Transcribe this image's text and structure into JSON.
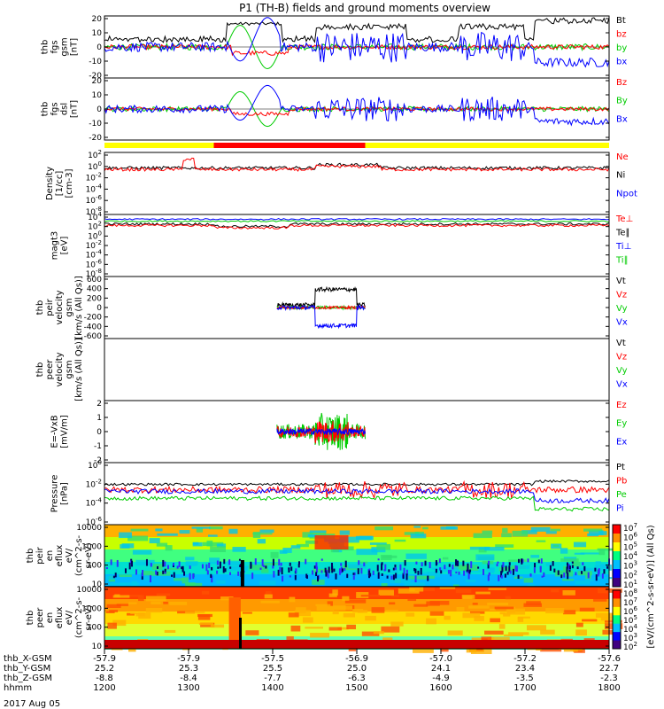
{
  "title": "P1 (TH-B) fields and ground moments overview",
  "colors": {
    "black": "#000000",
    "red": "#ff0000",
    "green": "#00cc00",
    "blue": "#0000ff",
    "yellow": "#ffff00"
  },
  "xaxis": {
    "rows": [
      {
        "label": "thb_X-GSM",
        "values": [
          "-57.9",
          "-57.9",
          "-57.5",
          "-56.9",
          "-57.0",
          "-57.2",
          "-57.6"
        ]
      },
      {
        "label": "thb_Y-GSM",
        "values": [
          "25.2",
          "25.3",
          "25.5",
          "25.0",
          "24.1",
          "23.4",
          "22.7"
        ]
      },
      {
        "label": "thb_Z-GSM",
        "values": [
          "-8.8",
          "-8.4",
          "-7.7",
          "-6.3",
          "-4.9",
          "-3.5",
          "-2.3"
        ]
      },
      {
        "label": "hhmm",
        "values": [
          "1200",
          "1300",
          "1400",
          "1500",
          "1600",
          "1700",
          "1800"
        ]
      }
    ],
    "date": "2017 Aug 05"
  },
  "status_bar": {
    "segments": [
      {
        "from": 1200,
        "to": 1330,
        "color": "yellow"
      },
      {
        "from": 1330,
        "to": 1510,
        "color": "red"
      },
      {
        "from": 1510,
        "to": 1800,
        "color": "yellow"
      }
    ]
  },
  "chart_data": [
    {
      "id": "fgs_gsm",
      "type": "line",
      "ylabel": [
        "thb",
        "fgs",
        "gsm",
        "[nT]"
      ],
      "yticks": [
        "20",
        "10",
        "0",
        "-10",
        "-20"
      ],
      "ylim": [
        -20,
        20
      ],
      "legend": [
        {
          "name": "Bt",
          "color": "black"
        },
        {
          "name": "bz",
          "color": "red"
        },
        {
          "name": "by",
          "color": "green"
        },
        {
          "name": "bx",
          "color": "blue"
        }
      ]
    },
    {
      "id": "fgs_dsl",
      "type": "line",
      "ylabel": [
        "thb",
        "fgs",
        "dsl",
        "[nT]"
      ],
      "yticks": [
        "20",
        "10",
        "0",
        "-10",
        "-20"
      ],
      "ylim": [
        -25,
        25
      ],
      "legend": [
        {
          "name": "Bz",
          "color": "red"
        },
        {
          "name": "By",
          "color": "green"
        },
        {
          "name": "Bx",
          "color": "blue"
        }
      ]
    },
    {
      "id": "density",
      "type": "line",
      "scale": "log",
      "ylabel": [
        "Density",
        "[1/cc]",
        "[cm-3]"
      ],
      "yticks": [
        "10^2",
        "10^0",
        "10^-2",
        "10^-4",
        "10^-6",
        "10^-8"
      ],
      "legend": [
        {
          "name": "Ne",
          "color": "red"
        },
        {
          "name": "Ni",
          "color": "black"
        },
        {
          "name": "Npot",
          "color": "blue"
        }
      ]
    },
    {
      "id": "temperature",
      "type": "line",
      "scale": "log",
      "ylabel": [
        "magt3",
        "[eV]"
      ],
      "yticks": [
        "10^4",
        "10^2",
        "10^0",
        "10^-2",
        "10^-4",
        "10^-6",
        "10^-8"
      ],
      "legend": [
        {
          "name": "Te⊥",
          "color": "red"
        },
        {
          "name": "Te∥",
          "color": "black"
        },
        {
          "name": "Ti⊥",
          "color": "blue"
        },
        {
          "name": "Ti∥",
          "color": "green"
        }
      ]
    },
    {
      "id": "peir_velocity",
      "type": "line",
      "ylabel": [
        "thb",
        "peir",
        "velocity",
        "gsm",
        "[km/s (All Qs)]"
      ],
      "yticks": [
        "600",
        "400",
        "200",
        "0",
        "-200",
        "-400",
        "-600"
      ],
      "ylim": [
        -600,
        600
      ],
      "legend": [
        {
          "name": "Vt",
          "color": "black"
        },
        {
          "name": "Vz",
          "color": "red"
        },
        {
          "name": "Vy",
          "color": "green"
        },
        {
          "name": "Vx",
          "color": "blue"
        }
      ]
    },
    {
      "id": "peer_velocity",
      "type": "line",
      "ylabel": [
        "thb",
        "peer",
        "velocity",
        "gsm",
        "[km/s (All Qs)]"
      ],
      "yticks": [],
      "legend": [
        {
          "name": "Vt",
          "color": "black"
        },
        {
          "name": "Vz",
          "color": "red"
        },
        {
          "name": "Vy",
          "color": "green"
        },
        {
          "name": "Vx",
          "color": "blue"
        }
      ]
    },
    {
      "id": "efield",
      "type": "line",
      "ylabel": [
        "E=-VxB",
        "[mV/m]"
      ],
      "yticks": [
        "2",
        "1",
        "0",
        "-1",
        "-2"
      ],
      "ylim": [
        -2.5,
        2.5
      ],
      "legend": [
        {
          "name": "Ez",
          "color": "red"
        },
        {
          "name": "Ey",
          "color": "green"
        },
        {
          "name": "Ex",
          "color": "blue"
        }
      ]
    },
    {
      "id": "pressure",
      "type": "line",
      "scale": "log",
      "ylabel": [
        "Pressure",
        "[nPa]"
      ],
      "yticks": [
        "10^0",
        "10^-2",
        "10^-4",
        "10^-6"
      ],
      "legend": [
        {
          "name": "Pt",
          "color": "black"
        },
        {
          "name": "Pb",
          "color": "red"
        },
        {
          "name": "Pe",
          "color": "green"
        },
        {
          "name": "Pi",
          "color": "blue"
        }
      ]
    },
    {
      "id": "peir_spec",
      "type": "heatmap",
      "ylabel": [
        "thb",
        "peir",
        "en",
        "eflux",
        "eV/",
        "(cm^2-s-",
        "sr-eV)"
      ],
      "yticks": [
        "10000",
        "1000",
        "100",
        "10"
      ]
    },
    {
      "id": "peer_spec",
      "type": "heatmap",
      "ylabel": [
        "thb",
        "peer",
        "en",
        "eflux",
        "eV/",
        "(cm^2-s-",
        "sr-eV)"
      ],
      "yticks": [
        "10000",
        "1000",
        "100",
        "10"
      ]
    }
  ],
  "colorbar": {
    "title": "[eV/(cm^2-s-sr-eV)] (All Qs)",
    "ion_ticks": [
      "10^7",
      "10^6",
      "10^5",
      "10^4",
      "10^3",
      "10^2",
      "10^1"
    ],
    "electron_ticks": [
      "10^8",
      "10^7",
      "10^6",
      "10^5",
      "10^4",
      "10^3",
      "10^2"
    ]
  }
}
